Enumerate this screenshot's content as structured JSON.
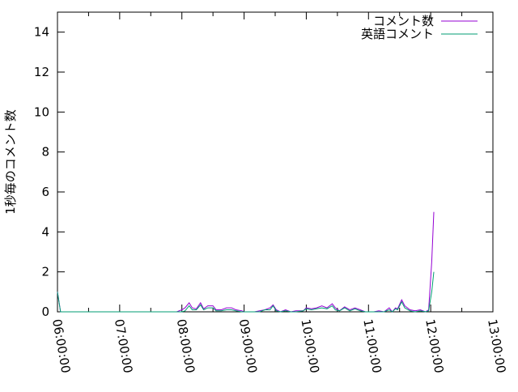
{
  "chart_data": {
    "type": "line",
    "title": "",
    "xlabel": "",
    "ylabel": "1秒毎のコメント数",
    "xlim": [
      "06:00:00",
      "13:00:00"
    ],
    "ylim": [
      0,
      15
    ],
    "xticks": [
      "06:00:00",
      "07:00:00",
      "08:00:00",
      "09:00:00",
      "10:00:00",
      "11:00:00",
      "12:00:00",
      "13:00:00"
    ],
    "yticks": [
      "0",
      "2",
      "4",
      "6",
      "8",
      "10",
      "12",
      "14"
    ],
    "grid": false,
    "legend_position": "top-right",
    "series": [
      {
        "name": "コメント数",
        "color": "#9400d3",
        "x": [
          "06:00",
          "06:03",
          "07:55",
          "08:00",
          "08:03",
          "08:07",
          "08:10",
          "08:14",
          "08:18",
          "08:21",
          "08:25",
          "08:30",
          "08:33",
          "08:38",
          "08:43",
          "08:48",
          "08:52",
          "08:58",
          "09:00",
          "09:10",
          "09:15",
          "09:20",
          "09:25",
          "09:28",
          "09:31",
          "09:35",
          "09:40",
          "09:45",
          "09:50",
          "09:57",
          "10:00",
          "10:05",
          "10:10",
          "10:15",
          "10:20",
          "10:25",
          "10:28",
          "10:32",
          "10:37",
          "10:42",
          "10:47",
          "10:52",
          "10:57",
          "11:05",
          "11:10",
          "11:15",
          "11:20",
          "11:23",
          "11:26",
          "11:28",
          "11:32",
          "11:35",
          "11:40",
          "11:45",
          "11:50",
          "11:55",
          "11:58",
          "12:01",
          "12:03"
        ],
        "y": [
          1.0,
          0,
          0,
          0.1,
          0.2,
          0.45,
          0.2,
          0.15,
          0.45,
          0.15,
          0.3,
          0.3,
          0.1,
          0.1,
          0.2,
          0.2,
          0.1,
          0.05,
          0,
          0,
          0.05,
          0.1,
          0.2,
          0.35,
          0.1,
          0,
          0.1,
          0,
          0.05,
          0.05,
          0.2,
          0.15,
          0.2,
          0.3,
          0.2,
          0.4,
          0.2,
          0.05,
          0.25,
          0.1,
          0.2,
          0.1,
          0,
          0,
          0.05,
          0,
          0.2,
          0,
          0.2,
          0.15,
          0.6,
          0.3,
          0.1,
          0.05,
          0.1,
          0,
          0.1,
          2.5,
          5.0
        ]
      },
      {
        "name": "英語コメント",
        "color": "#009e73",
        "x": [
          "06:00",
          "06:03",
          "07:55",
          "08:00",
          "08:03",
          "08:07",
          "08:10",
          "08:14",
          "08:18",
          "08:21",
          "08:25",
          "08:30",
          "08:33",
          "08:38",
          "08:43",
          "08:48",
          "08:52",
          "08:58",
          "09:00",
          "09:10",
          "09:15",
          "09:20",
          "09:25",
          "09:28",
          "09:31",
          "09:35",
          "09:40",
          "09:45",
          "09:50",
          "09:57",
          "10:00",
          "10:05",
          "10:10",
          "10:15",
          "10:20",
          "10:25",
          "10:28",
          "10:32",
          "10:37",
          "10:42",
          "10:47",
          "10:52",
          "10:57",
          "11:05",
          "11:10",
          "11:15",
          "11:20",
          "11:23",
          "11:26",
          "11:28",
          "11:32",
          "11:35",
          "11:40",
          "11:45",
          "11:50",
          "11:55",
          "11:58",
          "12:01",
          "12:03"
        ],
        "y": [
          1.0,
          0,
          0,
          0,
          0.05,
          0.3,
          0.1,
          0.1,
          0.35,
          0.1,
          0.2,
          0.2,
          0.05,
          0.05,
          0.1,
          0.1,
          0.05,
          0,
          0,
          0,
          0,
          0.1,
          0.1,
          0.3,
          0.05,
          0,
          0.05,
          0,
          0,
          0.05,
          0.15,
          0.1,
          0.15,
          0.2,
          0.15,
          0.3,
          0.1,
          0.05,
          0.2,
          0.05,
          0.15,
          0.05,
          0,
          0,
          0,
          0,
          0.1,
          0,
          0.15,
          0.1,
          0.5,
          0.2,
          0.05,
          0,
          0.05,
          0,
          0.05,
          1.0,
          2.0
        ]
      }
    ]
  }
}
